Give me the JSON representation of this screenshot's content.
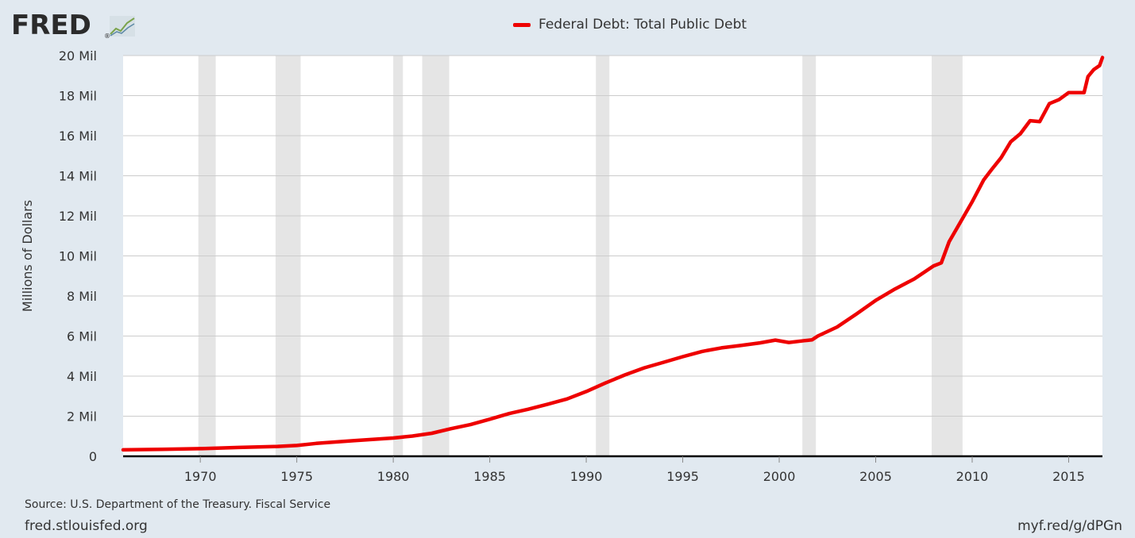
{
  "logo": {
    "text": "FRED",
    "trademark": "®"
  },
  "colors": {
    "background": "#e1e9f0",
    "plot_bg": "#ffffff",
    "series": "#ee0000",
    "recession": "#e5e5e5",
    "grid": "#cccccc",
    "axis": "#000000"
  },
  "footer": {
    "source": "Source: U.S. Department of the Treasury. Fiscal Service",
    "site": "fred.stlouisfed.org",
    "shortlink": "myf.red/g/dPGn"
  },
  "chart_data": {
    "type": "line",
    "title": "",
    "ylabel": "Millions of Dollars",
    "xlabel": "",
    "legend": "top-center",
    "grid": true,
    "xlim": [
      1966.0,
      2016.75
    ],
    "ylim": [
      0,
      20000000
    ],
    "y_ticks": [
      {
        "value": 0,
        "label": "0"
      },
      {
        "value": 2000000,
        "label": "2 Mil"
      },
      {
        "value": 4000000,
        "label": "4 Mil"
      },
      {
        "value": 6000000,
        "label": "6 Mil"
      },
      {
        "value": 8000000,
        "label": "8 Mil"
      },
      {
        "value": 10000000,
        "label": "10 Mil"
      },
      {
        "value": 12000000,
        "label": "12 Mil"
      },
      {
        "value": 14000000,
        "label": "14 Mil"
      },
      {
        "value": 16000000,
        "label": "16 Mil"
      },
      {
        "value": 18000000,
        "label": "18 Mil"
      },
      {
        "value": 20000000,
        "label": "20 Mil"
      }
    ],
    "x_ticks": [
      {
        "value": 1970,
        "label": "1970"
      },
      {
        "value": 1975,
        "label": "1975"
      },
      {
        "value": 1980,
        "label": "1980"
      },
      {
        "value": 1985,
        "label": "1985"
      },
      {
        "value": 1990,
        "label": "1990"
      },
      {
        "value": 1995,
        "label": "1995"
      },
      {
        "value": 2000,
        "label": "2000"
      },
      {
        "value": 2005,
        "label": "2005"
      },
      {
        "value": 2010,
        "label": "2010"
      },
      {
        "value": 2015,
        "label": "2015"
      }
    ],
    "recessions": [
      [
        1969.9,
        1970.8
      ],
      [
        1973.9,
        1975.2
      ],
      [
        1980.0,
        1980.5
      ],
      [
        1981.5,
        1982.9
      ],
      [
        1990.5,
        1991.2
      ],
      [
        2001.2,
        2001.9
      ],
      [
        2007.9,
        2009.5
      ]
    ],
    "series": [
      {
        "name": "Federal Debt: Total Public Debt",
        "color": "#ee0000",
        "x": [
          1966,
          1968,
          1970,
          1972,
          1974,
          1975,
          1976,
          1978,
          1980,
          1981,
          1982,
          1983,
          1984,
          1985,
          1986,
          1987,
          1988,
          1989,
          1990,
          1991,
          1992,
          1993,
          1994,
          1995,
          1996,
          1997,
          1998,
          1999,
          1999.8,
          2000.5,
          2001.3,
          2001.7,
          2002,
          2003,
          2004,
          2005,
          2006,
          2007,
          2008,
          2008.4,
          2008.8,
          2009.4,
          2010,
          2010.6,
          2011,
          2011.5,
          2012,
          2012.5,
          2013,
          2013.5,
          2014,
          2014.5,
          2015,
          2015.5,
          2015.8,
          2016,
          2016.3,
          2016.6,
          2016.75
        ],
        "y": [
          320000,
          350000,
          380000,
          440000,
          490000,
          540000,
          640000,
          780000,
          910000,
          1010000,
          1150000,
          1380000,
          1580000,
          1850000,
          2130000,
          2350000,
          2600000,
          2860000,
          3230000,
          3660000,
          4060000,
          4410000,
          4690000,
          4970000,
          5230000,
          5410000,
          5530000,
          5660000,
          5800000,
          5680000,
          5770000,
          5810000,
          6000000,
          6450000,
          7100000,
          7780000,
          8350000,
          8850000,
          9500000,
          9650000,
          10700000,
          11700000,
          12700000,
          13800000,
          14300000,
          14900000,
          15700000,
          16100000,
          16750000,
          16700000,
          17600000,
          17800000,
          18150000,
          18150000,
          18150000,
          18950000,
          19300000,
          19500000,
          19900000
        ]
      }
    ]
  }
}
